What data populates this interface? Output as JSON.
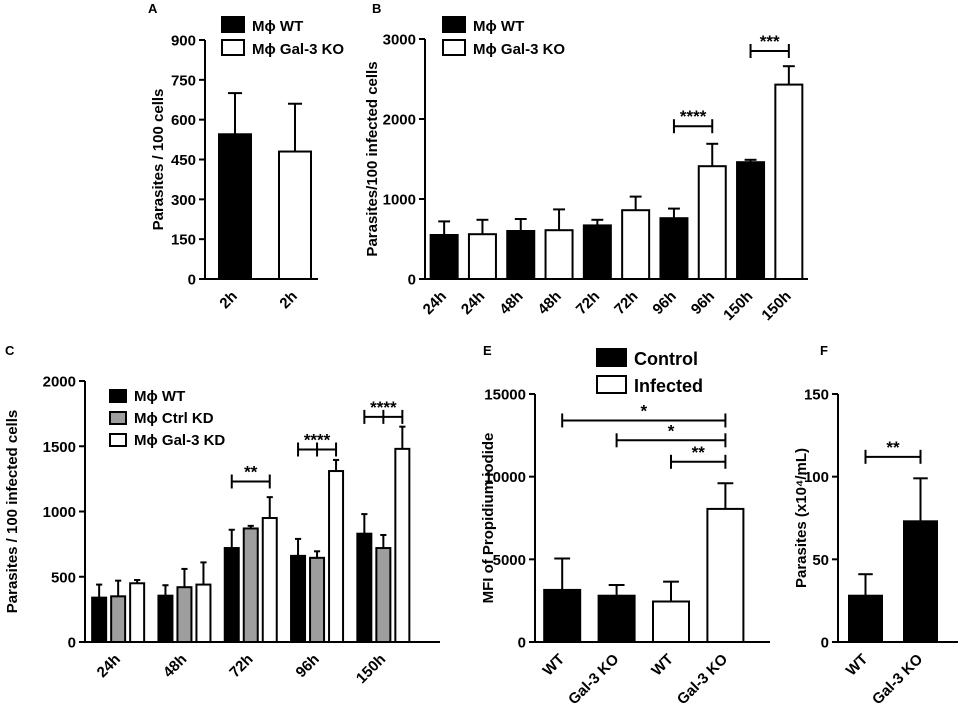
{
  "chart_data": [
    {
      "type": "bar",
      "panel": "A",
      "ylabel": "Parasites / 100 cells",
      "ylim": [
        0,
        900
      ],
      "yticks": [
        0,
        150,
        300,
        450,
        600,
        750,
        900
      ],
      "categories": [
        "2h",
        "2h"
      ],
      "legend": [
        "Mϕ WT",
        "Mϕ Gal-3 KO"
      ],
      "values": [
        545,
        480
      ],
      "errors": [
        155,
        180
      ],
      "fills": [
        "black",
        "white"
      ],
      "significance": []
    },
    {
      "type": "bar",
      "panel": "B",
      "ylabel": "Parasites/100 infected cells",
      "ylim": [
        0,
        3000
      ],
      "yticks": [
        0,
        1000,
        2000,
        3000
      ],
      "categories": [
        "24h",
        "24h",
        "48h",
        "48h",
        "72h",
        "72h",
        "96h",
        "96h",
        "150h",
        "150h"
      ],
      "legend": [
        "Mϕ WT",
        "Mϕ Gal-3 KO"
      ],
      "values": [
        550,
        560,
        600,
        610,
        670,
        860,
        760,
        1410,
        1460,
        2430
      ],
      "errors": [
        170,
        180,
        150,
        260,
        70,
        170,
        120,
        280,
        30,
        230
      ],
      "fills": [
        "black",
        "white",
        "black",
        "white",
        "black",
        "white",
        "black",
        "white",
        "black",
        "white"
      ],
      "significance": [
        {
          "from": 6,
          "to": 7,
          "label": "****",
          "y": 1910
        },
        {
          "from": 8,
          "to": 9,
          "label": "***",
          "y": 2850
        }
      ]
    },
    {
      "type": "bar",
      "panel": "C",
      "ylabel": "Parasites / 100 infected cells",
      "ylim": [
        0,
        2000
      ],
      "yticks": [
        0,
        500,
        1000,
        1500,
        2000
      ],
      "categories": [
        "24h",
        "48h",
        "72h",
        "96h",
        "150h"
      ],
      "legend": [
        "Mϕ WT",
        "Mϕ Ctrl KD",
        "Mϕ Gal-3 KD"
      ],
      "series": [
        {
          "name": "Mϕ WT",
          "fill": "black",
          "values": [
            340,
            355,
            720,
            660,
            830
          ],
          "errors": [
            100,
            80,
            140,
            130,
            150
          ]
        },
        {
          "name": "Mϕ Ctrl KD",
          "fill": "grey",
          "values": [
            350,
            420,
            870,
            645,
            720
          ],
          "errors": [
            120,
            140,
            20,
            50,
            100
          ]
        },
        {
          "name": "Mϕ Gal-3 KD",
          "fill": "white",
          "values": [
            450,
            440,
            950,
            1310,
            1480
          ],
          "errors": [
            25,
            170,
            160,
            85,
            170
          ]
        }
      ],
      "significance": [
        {
          "group": 2,
          "from": 0,
          "to": 2,
          "label": "**",
          "y": 1230,
          "mid": false
        },
        {
          "group": 3,
          "from": 0,
          "to": 2,
          "label": "****",
          "y": 1475,
          "mid": true
        },
        {
          "group": 4,
          "from": 0,
          "to": 2,
          "label": "****",
          "y": 1725,
          "mid": true
        }
      ]
    },
    {
      "type": "bar",
      "panel": "E",
      "ylabel": "MFI of Propidium iodide",
      "ylim": [
        0,
        15000
      ],
      "yticks": [
        0,
        5000,
        10000,
        15000
      ],
      "categories": [
        "WT",
        "Gal-3 KO",
        "WT",
        "Gal-3 KO"
      ],
      "legend": [
        "Control",
        "Infected"
      ],
      "values": [
        3150,
        2800,
        2450,
        8050
      ],
      "errors": [
        1900,
        650,
        1200,
        1550
      ],
      "fills": [
        "black",
        "black",
        "white",
        "white"
      ],
      "significance": [
        {
          "from": 0,
          "to": 3,
          "label": "*",
          "y": 13400
        },
        {
          "from": 1,
          "to": 3,
          "label": "*",
          "y": 12200
        },
        {
          "from": 2,
          "to": 3,
          "label": "**",
          "y": 10900
        }
      ]
    },
    {
      "type": "bar",
      "panel": "F",
      "ylabel": "Parasites (x10⁴/mL)",
      "ylim": [
        0,
        150
      ],
      "yticks": [
        0,
        50,
        100,
        150
      ],
      "categories": [
        "WT",
        "Gal-3 KO"
      ],
      "values": [
        28,
        73
      ],
      "errors": [
        13,
        26
      ],
      "fills": [
        "black",
        "black"
      ],
      "significance": [
        {
          "from": 0,
          "to": 1,
          "label": "**",
          "y": 112
        }
      ]
    }
  ]
}
